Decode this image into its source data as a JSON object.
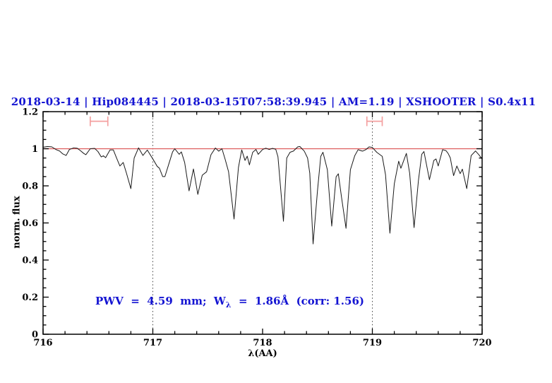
{
  "figure": {
    "title": "2018-03-14 | Hip084445 | 2018-03-15T07:58:39.945 | AM=1.19 | XSHOOTER | S0.4x11",
    "annotation_prefix": "PWV  =  4.59  mm;  W",
    "annotation_sub": "λ",
    "annotation_suffix": "  =  1.86Å  (corr: 1.56)",
    "text_blue": "#1414d2"
  },
  "chart_data": {
    "type": "line",
    "title": "2018-03-14 | Hip084445 | 2018-03-15T07:58:39.945 | AM=1.19 | XSHOOTER | S0.4x11",
    "annotation": "PWV = 4.59 mm; W_λ = 1.86Å (corr: 1.56)",
    "xlabel": "λ(AA)",
    "ylabel": "norm. flux",
    "xlim": [
      716,
      720
    ],
    "ylim": [
      0,
      1.2
    ],
    "grid": false,
    "x_major_ticks": [
      716,
      717,
      718,
      719,
      720
    ],
    "x_tick_labels": [
      "716",
      "717",
      "718",
      "719",
      "720"
    ],
    "x_minor_step": 0.2,
    "y_major_ticks": [
      0,
      0.2,
      0.4,
      0.6,
      0.8,
      1.0,
      1.2
    ],
    "y_tick_labels": [
      "0",
      "0.2",
      "0.4",
      "0.6",
      "0.8",
      "1",
      "1.2"
    ],
    "y_minor_step": 0.05,
    "reference_lines": {
      "continuum_y": 1.0,
      "dotted_x": [
        717,
        719
      ]
    },
    "range_markers": [
      {
        "x1": 716.43,
        "x2": 716.59,
        "y": 1.148,
        "cap_half": 0.026
      },
      {
        "x1": 718.95,
        "x2": 719.09,
        "y": 1.148,
        "cap_half": 0.026
      }
    ],
    "colors": {
      "spectrum": "#1a1a1a",
      "continuum": "#dd5c5c",
      "marker": "#f4a0a0",
      "frame": "#000000",
      "dotted": "#444444",
      "text_blue": "#1414d2"
    },
    "series": [
      {
        "name": "normalized telluric spectrum",
        "points": [
          [
            716.0,
            1.008
          ],
          [
            716.04,
            1.012
          ],
          [
            716.08,
            1.01
          ],
          [
            716.12,
            0.995
          ],
          [
            716.15,
            0.988
          ],
          [
            716.18,
            0.972
          ],
          [
            716.21,
            0.964
          ],
          [
            716.24,
            0.996
          ],
          [
            716.28,
            1.005
          ],
          [
            716.31,
            1.003
          ],
          [
            716.34,
            0.99
          ],
          [
            716.37,
            0.975
          ],
          [
            716.39,
            0.968
          ],
          [
            716.43,
            1.0
          ],
          [
            716.47,
            1.002
          ],
          [
            716.5,
            0.985
          ],
          [
            716.53,
            0.956
          ],
          [
            716.55,
            0.962
          ],
          [
            716.57,
            0.952
          ],
          [
            716.61,
            0.994
          ],
          [
            716.64,
            0.994
          ],
          [
            716.67,
            0.95
          ],
          [
            716.7,
            0.907
          ],
          [
            716.73,
            0.926
          ],
          [
            716.76,
            0.868
          ],
          [
            716.8,
            0.785
          ],
          [
            716.83,
            0.95
          ],
          [
            716.87,
            1.005
          ],
          [
            716.91,
            0.964
          ],
          [
            716.95,
            0.993
          ],
          [
            717.0,
            0.945
          ],
          [
            717.04,
            0.905
          ],
          [
            717.06,
            0.895
          ],
          [
            717.09,
            0.85
          ],
          [
            717.11,
            0.85
          ],
          [
            717.15,
            0.926
          ],
          [
            717.18,
            0.983
          ],
          [
            717.2,
            1.0
          ],
          [
            717.24,
            0.97
          ],
          [
            717.26,
            0.983
          ],
          [
            717.29,
            0.926
          ],
          [
            717.33,
            0.773
          ],
          [
            717.37,
            0.891
          ],
          [
            717.41,
            0.754
          ],
          [
            717.45,
            0.857
          ],
          [
            717.49,
            0.876
          ],
          [
            717.53,
            0.968
          ],
          [
            717.57,
            1.004
          ],
          [
            717.6,
            0.987
          ],
          [
            717.63,
            1.0
          ],
          [
            717.66,
            0.941
          ],
          [
            717.69,
            0.876
          ],
          [
            717.74,
            0.621
          ],
          [
            717.78,
            0.899
          ],
          [
            717.81,
            0.994
          ],
          [
            717.84,
            0.937
          ],
          [
            717.86,
            0.96
          ],
          [
            717.88,
            0.913
          ],
          [
            717.91,
            0.981
          ],
          [
            717.94,
            0.996
          ],
          [
            717.96,
            0.97
          ],
          [
            718.0,
            0.996
          ],
          [
            718.03,
            1.003
          ],
          [
            718.06,
            0.996
          ],
          [
            718.09,
            1.002
          ],
          [
            718.12,
            0.997
          ],
          [
            718.14,
            0.957
          ],
          [
            718.19,
            0.609
          ],
          [
            718.22,
            0.95
          ],
          [
            718.25,
            0.981
          ],
          [
            718.28,
            0.987
          ],
          [
            718.32,
            1.01
          ],
          [
            718.34,
            1.012
          ],
          [
            718.38,
            0.987
          ],
          [
            718.41,
            0.95
          ],
          [
            718.43,
            0.868
          ],
          [
            718.46,
            0.487
          ],
          [
            718.5,
            0.773
          ],
          [
            718.53,
            0.959
          ],
          [
            718.55,
            0.981
          ],
          [
            718.59,
            0.887
          ],
          [
            718.63,
            0.583
          ],
          [
            718.67,
            0.849
          ],
          [
            718.69,
            0.865
          ],
          [
            718.72,
            0.735
          ],
          [
            718.76,
            0.571
          ],
          [
            718.8,
            0.887
          ],
          [
            718.84,
            0.963
          ],
          [
            718.87,
            0.995
          ],
          [
            718.91,
            0.987
          ],
          [
            718.94,
            0.995
          ],
          [
            718.97,
            1.01
          ],
          [
            719.0,
            1.007
          ],
          [
            719.04,
            0.981
          ],
          [
            719.09,
            0.959
          ],
          [
            719.12,
            0.86
          ],
          [
            719.16,
            0.545
          ],
          [
            719.2,
            0.811
          ],
          [
            719.24,
            0.933
          ],
          [
            719.26,
            0.895
          ],
          [
            719.31,
            0.975
          ],
          [
            719.34,
            0.868
          ],
          [
            719.38,
            0.575
          ],
          [
            719.42,
            0.83
          ],
          [
            719.45,
            0.97
          ],
          [
            719.47,
            0.985
          ],
          [
            719.52,
            0.833
          ],
          [
            719.56,
            0.937
          ],
          [
            719.58,
            0.945
          ],
          [
            719.6,
            0.907
          ],
          [
            719.64,
            0.995
          ],
          [
            719.67,
            0.99
          ],
          [
            719.69,
            0.975
          ],
          [
            719.71,
            0.951
          ],
          [
            719.74,
            0.855
          ],
          [
            719.77,
            0.907
          ],
          [
            719.8,
            0.866
          ],
          [
            719.82,
            0.89
          ],
          [
            719.86,
            0.785
          ],
          [
            719.9,
            0.963
          ],
          [
            719.94,
            0.988
          ],
          [
            719.97,
            0.968
          ],
          [
            720.0,
            0.945
          ]
        ]
      }
    ]
  }
}
